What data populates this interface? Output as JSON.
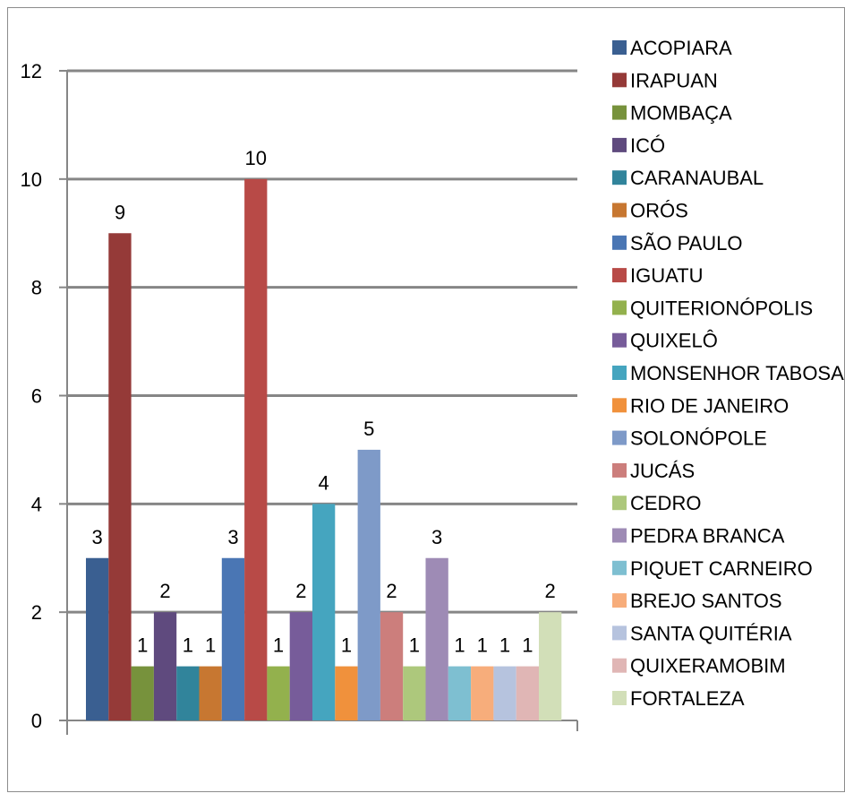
{
  "chart_data": {
    "type": "bar",
    "title": "",
    "xlabel": "",
    "ylabel": "",
    "ylim": [
      0,
      12
    ],
    "yticks": [
      "0",
      "2",
      "4",
      "6",
      "8",
      "10",
      "12"
    ],
    "grid": true,
    "legend_position": "right",
    "series": [
      {
        "name": "ACOPIARA",
        "value": 3,
        "color": "#3a5f91"
      },
      {
        "name": "IRAPUAN",
        "value": 9,
        "color": "#953a38"
      },
      {
        "name": "MOMBAÇA",
        "value": 1,
        "color": "#77923c"
      },
      {
        "name": "ICÓ",
        "value": 2,
        "color": "#5f4a7e"
      },
      {
        "name": "CARANAUBAL",
        "value": 1,
        "color": "#31849b"
      },
      {
        "name": "ORÓS",
        "value": 1,
        "color": "#c77731"
      },
      {
        "name": "SÃO PAULO",
        "value": 3,
        "color": "#4a76b4"
      },
      {
        "name": "IGUATU",
        "value": 10,
        "color": "#b84a47"
      },
      {
        "name": "QUITERIONÓPOLIS",
        "value": 1,
        "color": "#93b14d"
      },
      {
        "name": "QUIXELÔ",
        "value": 2,
        "color": "#775c9a"
      },
      {
        "name": "MONSENHOR TABOSA",
        "value": 4,
        "color": "#45a5bf"
      },
      {
        "name": "RIO DE JANEIRO",
        "value": 1,
        "color": "#f0913c"
      },
      {
        "name": "SOLONÓPOLE",
        "value": 5,
        "color": "#7e9ac8"
      },
      {
        "name": "JUCÁS",
        "value": 2,
        "color": "#cc7e7c"
      },
      {
        "name": "CEDRO",
        "value": 1,
        "color": "#adc87c"
      },
      {
        "name": "PEDRA BRANCA",
        "value": 3,
        "color": "#9e8bb5"
      },
      {
        "name": "PIQUET CARNEIRO",
        "value": 1,
        "color": "#7ebfd1"
      },
      {
        "name": "BREJO SANTOS",
        "value": 1,
        "color": "#f7ad7b"
      },
      {
        "name": "SANTA QUITÉRIA",
        "value": 1,
        "color": "#b6c3de"
      },
      {
        "name": "QUIXERAMOBIM",
        "value": 1,
        "color": "#e0b6b5"
      },
      {
        "name": "FORTALEZA",
        "value": 2,
        "color": "#d2dfb8"
      }
    ]
  }
}
